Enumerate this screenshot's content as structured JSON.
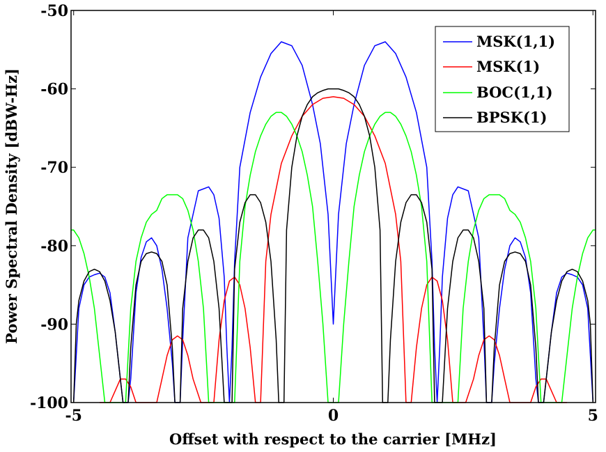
{
  "chart_data": {
    "type": "line",
    "title": "",
    "xlabel": "Offset with respect to the carrier [MHz]",
    "ylabel": "Power Spectral Density [dBW-Hz]",
    "xlim": [
      -5.05,
      5.05
    ],
    "ylim": [
      -100,
      -50
    ],
    "xticks": [
      -5,
      0,
      5
    ],
    "yticks": [
      -100,
      -90,
      -80,
      -70,
      -60,
      -50
    ],
    "xtick_labels": [
      "-5",
      "0",
      "5"
    ],
    "ytick_labels": [
      "-100",
      "-90",
      "-80",
      "-70",
      "-60",
      "-50"
    ],
    "grid": false,
    "legend_position": "top-right",
    "series": [
      {
        "name": "MSK(1,1)",
        "color": "#0000ff",
        "x": [
          -5,
          -4.9,
          -4.8,
          -4.7,
          -4.6,
          -4.5,
          -4.4,
          -4.3,
          -4.2,
          -4.1,
          -4.05,
          -4.0,
          -3.95,
          -3.9,
          -3.8,
          -3.7,
          -3.6,
          -3.5,
          -3.4,
          -3.3,
          -3.2,
          -3.1,
          -3.05,
          -3.0,
          -2.95,
          -2.9,
          -2.8,
          -2.6,
          -2.4,
          -2.3,
          -2.2,
          -2.1,
          -2.05,
          -2.0,
          -1.95,
          -1.9,
          -1.8,
          -1.6,
          -1.4,
          -1.2,
          -1.0,
          -0.8,
          -0.6,
          -0.4,
          -0.25,
          -0.1,
          0.0,
          0.1,
          0.25,
          0.4,
          0.6,
          0.8,
          1.0,
          1.2,
          1.4,
          1.6,
          1.8,
          1.9,
          1.95,
          2.0,
          2.05,
          2.1,
          2.2,
          2.3,
          2.4,
          2.6,
          2.8,
          2.9,
          2.95,
          3.0,
          3.05,
          3.1,
          3.2,
          3.3,
          3.4,
          3.5,
          3.6,
          3.7,
          3.8,
          3.9,
          3.95,
          4.0,
          4.05,
          4.1,
          4.2,
          4.3,
          4.4,
          4.5,
          4.6,
          4.7,
          4.8,
          4.9,
          5
        ],
        "y": [
          -100,
          -88,
          -85,
          -84,
          -83.7,
          -83.5,
          -84,
          -86,
          -91,
          -97,
          -100,
          -100,
          -100,
          -97,
          -86,
          -81.5,
          -79.5,
          -79,
          -80,
          -83,
          -88,
          -95,
          -100,
          -100,
          -100,
          -92,
          -79,
          -73,
          -72.5,
          -73.5,
          -76.5,
          -84,
          -93,
          -100,
          -93,
          -82,
          -70,
          -63,
          -58.5,
          -55.5,
          -54,
          -54.5,
          -57,
          -62,
          -67,
          -76,
          -90,
          -76,
          -67,
          -62,
          -57,
          -54.5,
          -54,
          -55.5,
          -58.5,
          -63,
          -70,
          -82,
          -93,
          -100,
          -93,
          -84,
          -76.5,
          -73.5,
          -72.5,
          -73,
          -79,
          -92,
          -100,
          -100,
          -100,
          -95,
          -88,
          -83,
          -80,
          -79,
          -79.5,
          -81.5,
          -86,
          -97,
          -100,
          -100,
          -100,
          -97,
          -91,
          -86,
          -84,
          -83.5,
          -83.7,
          -84,
          -85,
          -88,
          -100
        ]
      },
      {
        "name": "MSK(1)",
        "color": "#ff0000",
        "x": [
          -4.5,
          -4.3,
          -4.2,
          -4.1,
          -4.0,
          -3.9,
          -3.8,
          -3.6,
          -3.4,
          -3.3,
          -3.2,
          -3.1,
          -3.0,
          -2.9,
          -2.8,
          -2.7,
          -2.55,
          -2.5,
          -2.3,
          -2.2,
          -2.1,
          -2.0,
          -1.9,
          -1.8,
          -1.7,
          -1.6,
          -1.5,
          -1.4,
          -1.3,
          -1.2,
          -1.0,
          -0.8,
          -0.6,
          -0.4,
          -0.2,
          0.0,
          0.2,
          0.4,
          0.6,
          0.8,
          1.0,
          1.2,
          1.3,
          1.4,
          1.5,
          1.6,
          1.7,
          1.8,
          1.9,
          2.0,
          2.1,
          2.2,
          2.3,
          2.5,
          2.55,
          2.7,
          2.8,
          2.9,
          3.0,
          3.1,
          3.2,
          3.3,
          3.4,
          3.6,
          3.8,
          3.9,
          4.0,
          4.1,
          4.2,
          4.3,
          4.5
        ],
        "y": [
          -100,
          -100,
          -98.5,
          -97,
          -97,
          -98,
          -100,
          -100,
          -100,
          -97,
          -94,
          -92,
          -91.5,
          -92,
          -94,
          -97,
          -100,
          -100,
          -100,
          -92,
          -87,
          -84.5,
          -84,
          -85,
          -88,
          -93,
          -100,
          -100,
          -82,
          -76,
          -69.5,
          -66,
          -63.5,
          -62,
          -61.2,
          -61,
          -61.2,
          -62,
          -63.5,
          -66,
          -69.5,
          -76,
          -82,
          -100,
          -100,
          -93,
          -88,
          -85,
          -84,
          -84.5,
          -87,
          -92,
          -100,
          -100,
          -100,
          -97,
          -94,
          -92,
          -91.5,
          -92,
          -94,
          -97,
          -100,
          -100,
          -100,
          -98,
          -97,
          -97,
          -98.5,
          -100,
          -100
        ]
      },
      {
        "name": "BOC(1,1)",
        "color": "#00ff00",
        "x": [
          -5.05,
          -5.0,
          -4.9,
          -4.8,
          -4.7,
          -4.6,
          -4.5,
          -4.4,
          -4.3,
          -4.2,
          -4.15,
          -4.1,
          -4.0,
          -3.9,
          -3.8,
          -3.7,
          -3.6,
          -3.5,
          -3.4,
          -3.3,
          -3.2,
          -3.1,
          -3.0,
          -2.9,
          -2.8,
          -2.7,
          -2.6,
          -2.5,
          -2.4,
          -2.3,
          -2.2,
          -2.1,
          -2.0,
          -1.9,
          -1.8,
          -1.7,
          -1.6,
          -1.5,
          -1.4,
          -1.3,
          -1.2,
          -1.1,
          -1.0,
          -0.9,
          -0.8,
          -0.7,
          -0.6,
          -0.5,
          -0.4,
          -0.3,
          -0.2,
          -0.1,
          0.0,
          0.1,
          0.2,
          0.3,
          0.4,
          0.5,
          0.6,
          0.7,
          0.8,
          0.9,
          1.0,
          1.1,
          1.2,
          1.3,
          1.4,
          1.5,
          1.6,
          1.7,
          1.8,
          1.9,
          2.0,
          2.1,
          2.2,
          2.3,
          2.4,
          2.5,
          2.6,
          2.7,
          2.8,
          2.9,
          3.0,
          3.1,
          3.2,
          3.3,
          3.4,
          3.5,
          3.6,
          3.7,
          3.8,
          3.9,
          4.0,
          4.1,
          4.15,
          4.2,
          4.3,
          4.4,
          4.5,
          4.6,
          4.7,
          4.8,
          4.9,
          5.0,
          5.05
        ],
        "y": [
          -78,
          -78,
          -79,
          -81,
          -84,
          -88,
          -94,
          -100,
          -100,
          -100,
          -100,
          -100,
          -100,
          -88,
          -82,
          -79,
          -77,
          -76,
          -75.5,
          -74,
          -73.5,
          -73.5,
          -73.5,
          -74,
          -75.5,
          -78,
          -82,
          -88,
          -100,
          -100,
          -100,
          -100,
          -100,
          -100,
          -82,
          -75,
          -71,
          -68,
          -66,
          -64.5,
          -63.5,
          -63,
          -63,
          -63.5,
          -64.5,
          -66,
          -68,
          -71,
          -75,
          -82,
          -90,
          -100,
          -100,
          -100,
          -90,
          -82,
          -75,
          -71,
          -68,
          -66,
          -64.5,
          -63.5,
          -63,
          -63,
          -63.5,
          -64.5,
          -66,
          -68,
          -71,
          -75,
          -82,
          -100,
          -100,
          -100,
          -100,
          -100,
          -100,
          -88,
          -82,
          -78,
          -75.5,
          -74,
          -73.5,
          -73.5,
          -73.5,
          -74,
          -75.5,
          -76,
          -77,
          -79,
          -82,
          -88,
          -100,
          -100,
          -100,
          -100,
          -100,
          -100,
          -94,
          -88,
          -84,
          -81,
          -79,
          -78,
          -78
        ]
      },
      {
        "name": "BPSK(1)",
        "color": "#000000",
        "x": [
          -5,
          -4.95,
          -4.9,
          -4.8,
          -4.7,
          -4.6,
          -4.5,
          -4.4,
          -4.3,
          -4.2,
          -4.1,
          -4.05,
          -4.0,
          -3.95,
          -3.9,
          -3.8,
          -3.7,
          -3.6,
          -3.5,
          -3.4,
          -3.3,
          -3.2,
          -3.1,
          -3.05,
          -3.0,
          -2.95,
          -2.9,
          -2.8,
          -2.7,
          -2.6,
          -2.5,
          -2.4,
          -2.3,
          -2.2,
          -2.1,
          -2.05,
          -2.0,
          -1.95,
          -1.9,
          -1.8,
          -1.7,
          -1.6,
          -1.5,
          -1.4,
          -1.3,
          -1.2,
          -1.1,
          -1.05,
          -1.0,
          -0.95,
          -0.9,
          -0.8,
          -0.7,
          -0.6,
          -0.5,
          -0.4,
          -0.3,
          -0.2,
          -0.1,
          0.0,
          0.1,
          0.2,
          0.3,
          0.4,
          0.5,
          0.6,
          0.7,
          0.8,
          0.9,
          0.95,
          1.0,
          1.05,
          1.1,
          1.2,
          1.3,
          1.4,
          1.5,
          1.6,
          1.7,
          1.8,
          1.9,
          1.95,
          2.0,
          2.05,
          2.1,
          2.2,
          2.3,
          2.4,
          2.5,
          2.6,
          2.7,
          2.8,
          2.9,
          2.95,
          3.0,
          3.05,
          3.1,
          3.2,
          3.3,
          3.4,
          3.5,
          3.6,
          3.7,
          3.8,
          3.9,
          3.95,
          4.0,
          4.05,
          4.1,
          4.2,
          4.3,
          4.4,
          4.5,
          4.6,
          4.7,
          4.8,
          4.9,
          4.95,
          5
        ],
        "y": [
          -100,
          -90,
          -87,
          -84.5,
          -83.3,
          -83,
          -83.3,
          -84.5,
          -87,
          -91,
          -97,
          -100,
          -100,
          -100,
          -93,
          -85,
          -82,
          -81,
          -80.8,
          -81,
          -82,
          -85,
          -93,
          -100,
          -100,
          -100,
          -88,
          -82,
          -79,
          -78,
          -78,
          -79,
          -82,
          -88,
          -100,
          -100,
          -100,
          -100,
          -83,
          -77,
          -74.5,
          -73.5,
          -73.5,
          -74.5,
          -77,
          -82,
          -92,
          -100,
          -100,
          -100,
          -78,
          -70,
          -66,
          -63.5,
          -62,
          -61,
          -60.5,
          -60.2,
          -60,
          -60,
          -60,
          -60.2,
          -60.5,
          -61,
          -62,
          -63.5,
          -66,
          -70,
          -78,
          -100,
          -100,
          -100,
          -92,
          -82,
          -77,
          -74.5,
          -73.5,
          -73.5,
          -74.5,
          -77,
          -83,
          -100,
          -100,
          -100,
          -100,
          -88,
          -82,
          -79,
          -78,
          -78,
          -79,
          -82,
          -88,
          -100,
          -100,
          -100,
          -93,
          -85,
          -82,
          -81,
          -80.8,
          -81,
          -82,
          -85,
          -93,
          -100,
          -100,
          -100,
          -97,
          -91,
          -87,
          -84.5,
          -83.3,
          -83,
          -83.3,
          -84.5,
          -87,
          -90,
          -100
        ]
      }
    ]
  }
}
